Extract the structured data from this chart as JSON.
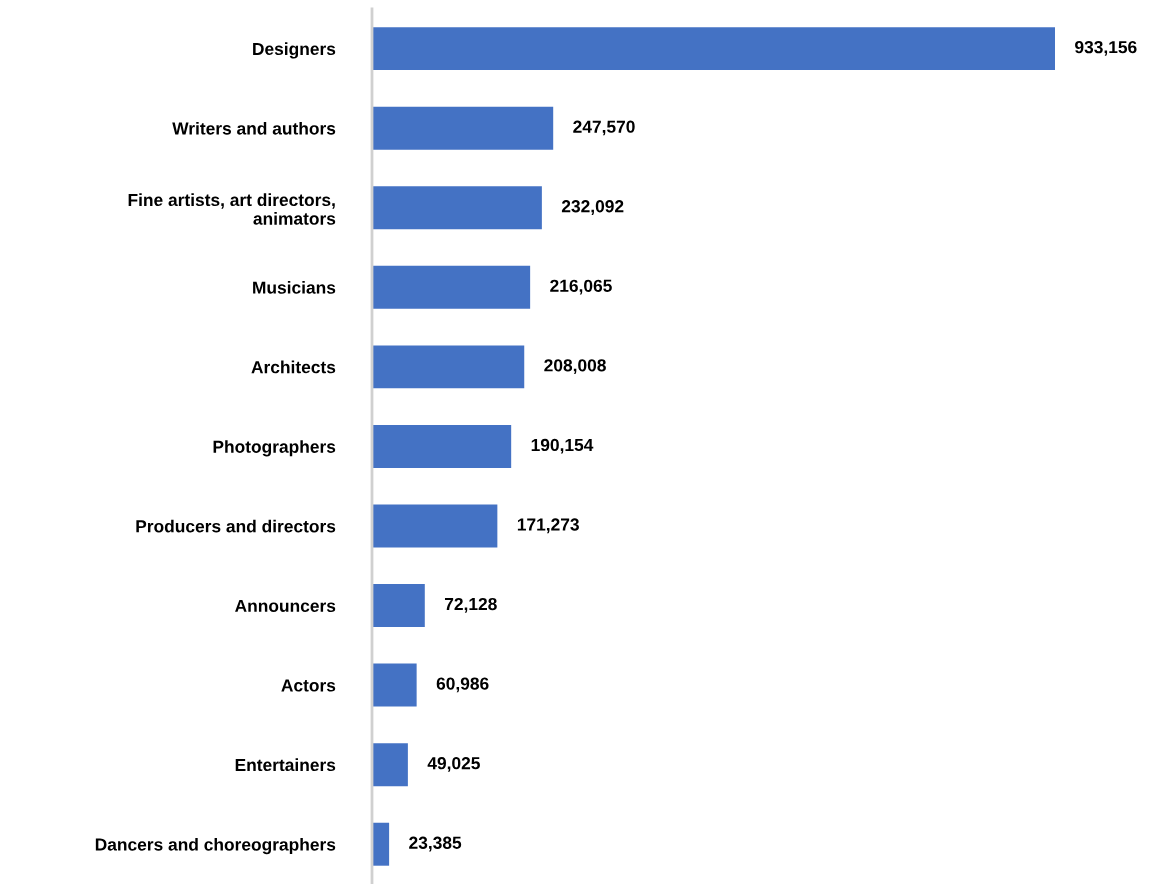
{
  "chart_data": {
    "type": "bar",
    "orientation": "horizontal",
    "categories": [
      "Designers",
      "Writers and authors",
      "Fine artists, art directors,\nanimators",
      "Musicians",
      "Architects",
      "Photographers",
      "Producers and directors",
      "Announcers",
      "Actors",
      "Entertainers",
      "Dancers and choreographers"
    ],
    "values": [
      933156,
      247570,
      232092,
      216065,
      208008,
      190154,
      171273,
      72128,
      60986,
      49025,
      23385
    ],
    "color": "#4472c4",
    "value_labels": [
      "933,156",
      "247,570",
      "232,092",
      "216,065",
      "208,008",
      "190,154",
      "171,273",
      "72,128",
      "60,986",
      "49,025",
      "23,385"
    ],
    "grid": false,
    "legend": false,
    "tick_labels": "y"
  }
}
